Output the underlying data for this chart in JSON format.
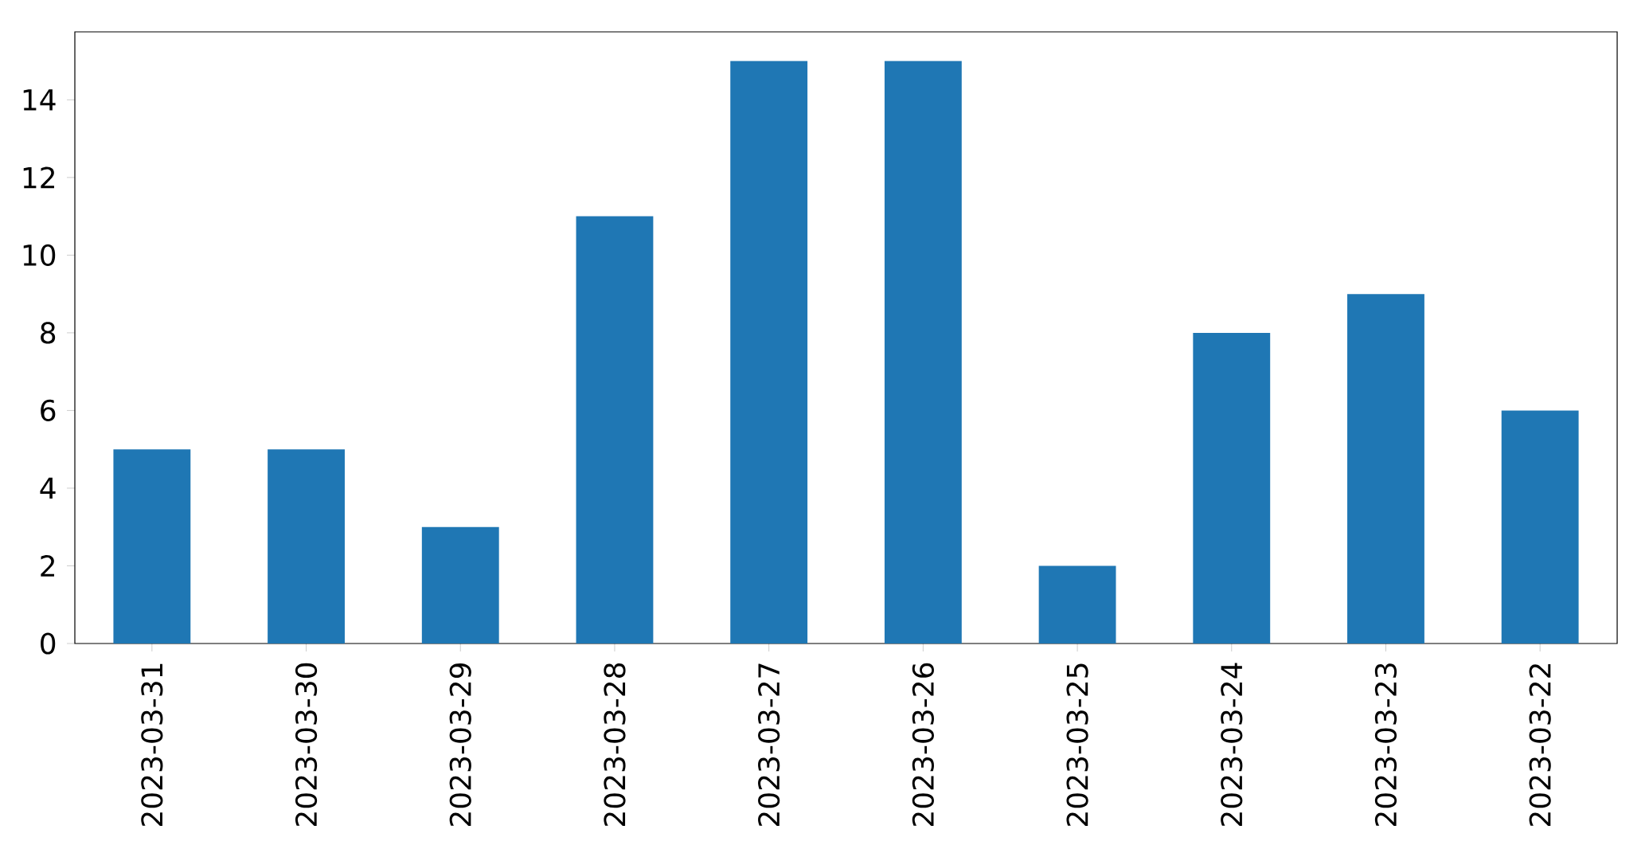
{
  "chart_data": {
    "type": "bar",
    "categories": [
      "2023-03-31",
      "2023-03-30",
      "2023-03-29",
      "2023-03-28",
      "2023-03-27",
      "2023-03-26",
      "2023-03-25",
      "2023-03-24",
      "2023-03-23",
      "2023-03-22"
    ],
    "values": [
      5,
      5,
      3,
      11,
      15,
      15,
      2,
      8,
      9,
      6
    ],
    "color": "#1f77b4",
    "ylim": [
      0,
      15.75
    ],
    "yticks": [
      0,
      2,
      4,
      6,
      8,
      10,
      12,
      14
    ]
  }
}
